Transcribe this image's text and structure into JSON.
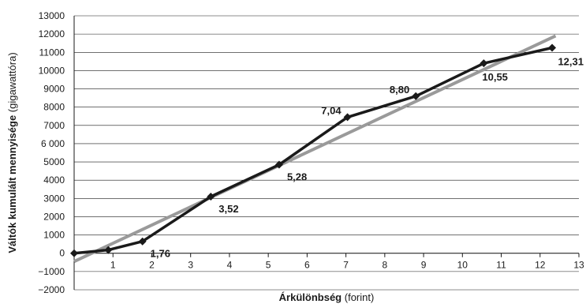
{
  "chart_data": {
    "type": "line",
    "xlabel": {
      "bold": "Árkülönbség",
      "normal": " (forint)"
    },
    "ylabel": {
      "bold": "Váltók kumulált mennyisége",
      "normal": " (gigawattóra)"
    },
    "xlim": [
      0,
      13
    ],
    "ylim": [
      -2000,
      13000
    ],
    "x_ticks": [
      "1",
      "2",
      "3",
      "4",
      "5",
      "6",
      "7",
      "8",
      "9",
      "10",
      "11",
      "12",
      "13"
    ],
    "y_ticks": [
      {
        "value": -2000,
        "label": "−2000"
      },
      {
        "value": -1000,
        "label": "−1000"
      },
      {
        "value": 0,
        "label": "0"
      },
      {
        "value": 1000,
        "label": "1000"
      },
      {
        "value": 2000,
        "label": "2000"
      },
      {
        "value": 3000,
        "label": "3000"
      },
      {
        "value": 4000,
        "label": "4000"
      },
      {
        "value": 5000,
        "label": "5000"
      },
      {
        "value": 6000,
        "label": "6 000"
      },
      {
        "value": 7000,
        "label": "7000"
      },
      {
        "value": 8000,
        "label": "8000"
      },
      {
        "value": 9000,
        "label": "9000"
      },
      {
        "value": 10000,
        "label": "10000"
      },
      {
        "value": 11000,
        "label": "11000"
      },
      {
        "value": 12000,
        "label": "12000"
      },
      {
        "value": 13000,
        "label": "13000"
      }
    ],
    "grid": "horizontal",
    "series": [
      {
        "color": "#1a1a1a",
        "marker": "diamond",
        "x": [
          0,
          0.88,
          1.76,
          3.52,
          5.28,
          7.04,
          8.8,
          10.55,
          12.31
        ],
        "y": [
          0,
          180,
          650,
          3100,
          4850,
          7450,
          8600,
          10400,
          11250
        ],
        "labels": [
          "",
          "",
          "1,76",
          "3,52",
          "5,28",
          "7,04",
          "8,80",
          "10,55",
          "12,31"
        ]
      },
      {
        "color": "#9a9a9a",
        "marker": "none",
        "x": [
          0,
          12.4
        ],
        "y": [
          -450,
          11900
        ],
        "labels": []
      }
    ]
  }
}
